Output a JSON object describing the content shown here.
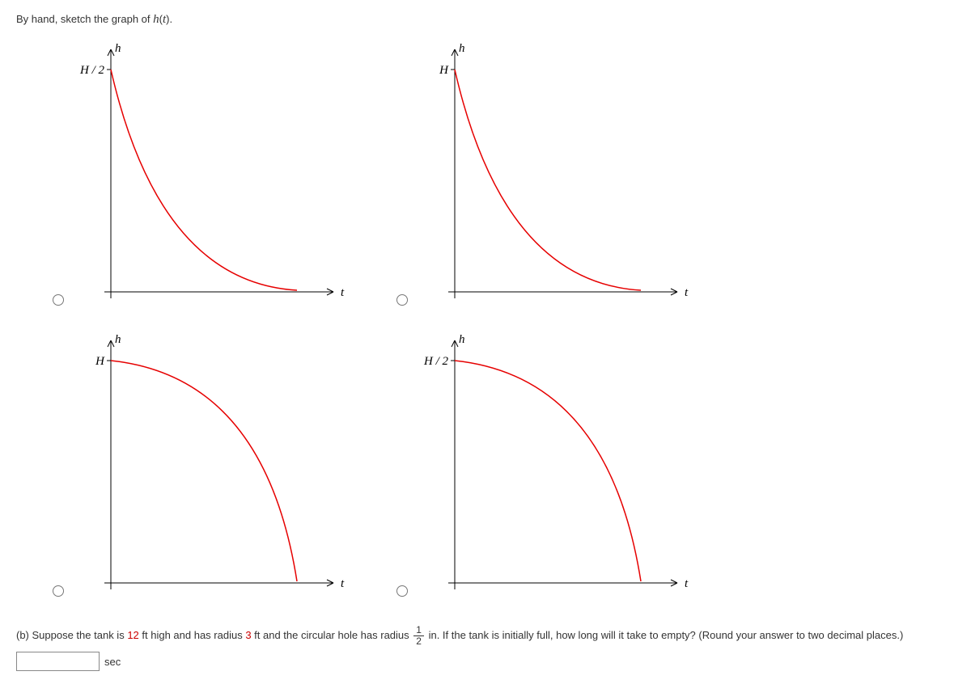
{
  "prompt_prefix": "By hand, sketch the graph of ",
  "prompt_func": "h",
  "prompt_arg": "t",
  "prompt_suffix": ".",
  "charts": {
    "axis_color": "#000000",
    "curve_color": "#e60000",
    "axis_width": 1,
    "curve_width": 1.5,
    "tick_len": 5,
    "options": [
      {
        "y_label": "h",
        "x_label": "t",
        "y_tick_label": "H / 2",
        "curve_type": "concave_up"
      },
      {
        "y_label": "h",
        "x_label": "t",
        "y_tick_label": "H",
        "curve_type": "concave_up"
      },
      {
        "y_label": "h",
        "x_label": "t",
        "y_tick_label": "H",
        "curve_type": "concave_down"
      },
      {
        "y_label": "h",
        "x_label": "t",
        "y_tick_label": "H / 2",
        "curve_type": "concave_down"
      }
    ]
  },
  "partB": {
    "label": "(b) Suppose the tank is ",
    "height_val": "12",
    "text2": " ft high and has radius ",
    "radius_val": "3",
    "text3": " ft and the circular hole has radius ",
    "frac_num": "1",
    "frac_den": "2",
    "text4": " in. If the tank is initially full, how long will it take to empty? (Round your answer to two decimal places.)",
    "unit": "sec"
  }
}
